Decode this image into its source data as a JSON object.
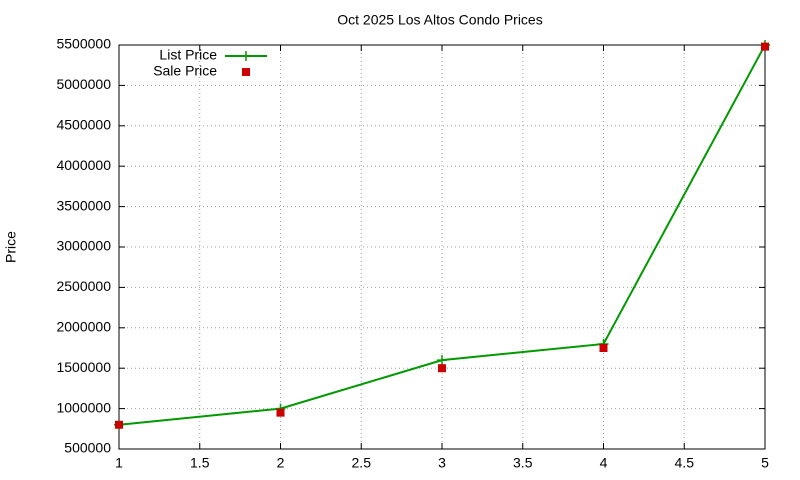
{
  "chart_data": {
    "type": "line",
    "title": "Oct 2025 Los Altos Condo Prices",
    "y_label": "Price",
    "x": [
      1,
      2,
      3,
      4,
      5
    ],
    "series": [
      {
        "name": "List Price",
        "color": "#009900",
        "style": "linespoints",
        "values": [
          800000,
          1000000,
          1600000,
          1800000,
          5500000
        ]
      },
      {
        "name": "Sale Price",
        "color": "#cc0000",
        "style": "points",
        "values": [
          800000,
          950000,
          1500000,
          1750000,
          5480000
        ]
      }
    ],
    "xlim": [
      1,
      5
    ],
    "xticks": [
      1,
      1.5,
      2,
      2.5,
      3,
      3.5,
      4,
      4.5,
      5
    ],
    "ylim": [
      500000,
      5500000
    ],
    "yticks": [
      500000,
      1000000,
      1500000,
      2000000,
      2500000,
      3000000,
      3500000,
      4000000,
      4500000,
      5000000,
      5500000
    ],
    "grid": true,
    "legend": "top-left"
  }
}
